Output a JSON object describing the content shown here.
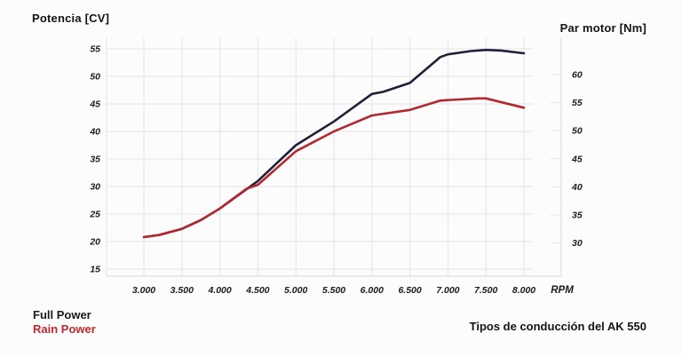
{
  "header": {
    "left_axis_title": "Potencia [CV]",
    "right_axis_title": "Par motor [Nm]"
  },
  "legend": {
    "items": [
      {
        "label": "Full Power",
        "color": "#1a1a1a"
      },
      {
        "label": "Rain Power",
        "color": "#c1272d"
      }
    ]
  },
  "footer": {
    "caption": "Tipos de conducción del AK 550"
  },
  "colors": {
    "full_power_line": "#20203a",
    "rain_power_line": "#b2292f",
    "grid": "#e4e4ea",
    "axis_frame": "#d9d9df",
    "tick_text": "#1c1c1c",
    "background": "#fcfcfc"
  },
  "chart_data": {
    "type": "line",
    "title": "",
    "xlabel": "RPM",
    "ylabel_left": "Potencia [CV]",
    "ylabel_right": "Par motor [Nm]",
    "grid": true,
    "legend_position": "bottom-left",
    "x_ticks": [
      "3.000",
      "3.500",
      "4.000",
      "4.500",
      "5.000",
      "5.500",
      "6.000",
      "6.500",
      "7.000",
      "7.500",
      "8.000"
    ],
    "x_tick_values": [
      3000,
      3500,
      4000,
      4500,
      5000,
      5500,
      6000,
      6500,
      7000,
      7500,
      8000
    ],
    "left_ticks": [
      55,
      50,
      45,
      40,
      35,
      30,
      25,
      20,
      15
    ],
    "right_ticks": [
      60,
      55,
      50,
      45,
      40,
      35,
      30
    ],
    "xlim": [
      3000,
      8000
    ],
    "ylim_left": [
      15,
      57
    ],
    "ylim_right": [
      28,
      62
    ],
    "series": [
      {
        "name": "Full Power",
        "axis": "left",
        "color": "#20203a",
        "x": [
          3000,
          3200,
          3500,
          3750,
          4000,
          4500,
          5000,
          5500,
          6000,
          6150,
          6500,
          6900,
          7000,
          7300,
          7500,
          7700,
          8000
        ],
        "y": [
          20.8,
          21.2,
          22.3,
          23.9,
          26.0,
          31.0,
          37.5,
          41.8,
          46.8,
          47.2,
          48.8,
          53.5,
          54.0,
          54.6,
          54.8,
          54.7,
          54.2
        ]
      },
      {
        "name": "Rain Power",
        "axis": "left",
        "color": "#b2292f",
        "x": [
          3000,
          3200,
          3500,
          3750,
          4000,
          4350,
          4500,
          5000,
          5500,
          6000,
          6500,
          6900,
          7000,
          7400,
          7500,
          8000
        ],
        "y": [
          20.8,
          21.2,
          22.3,
          23.9,
          26.0,
          29.6,
          30.3,
          36.4,
          40.0,
          42.9,
          43.9,
          45.6,
          45.7,
          46.0,
          46.0,
          44.3
        ]
      }
    ]
  }
}
